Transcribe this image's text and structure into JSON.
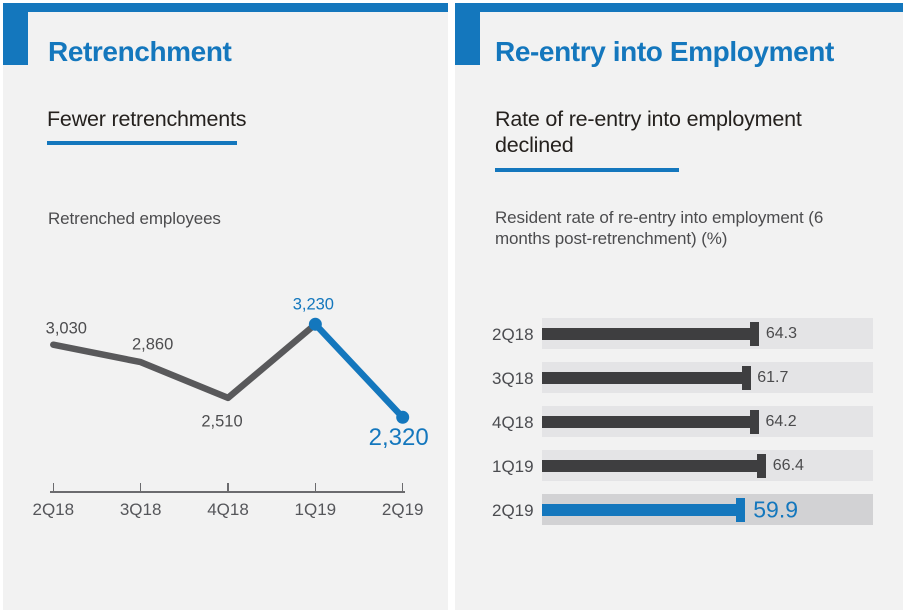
{
  "colors": {
    "accent_blue": "#1477bd",
    "panel_background": "#f2f2f2",
    "dark_text": "#25211e",
    "gray_line": "#59595b",
    "dark_bar": "#3e3e40",
    "bar_track": "#e4e4e6",
    "bar_track_highlight": "#d2d2d4"
  },
  "panels": [
    {
      "title": "Retrenchment",
      "headline": "Fewer retrenchments"
    },
    {
      "title": "Re-entry into Employment",
      "headline": "Rate of re-entry into employment declined"
    }
  ],
  "chart_data": [
    {
      "type": "line",
      "title": "Retrenched employees",
      "categories": [
        "2Q18",
        "3Q18",
        "4Q18",
        "1Q19",
        "2Q19"
      ],
      "values": [
        3030,
        2860,
        2510,
        3230,
        2320
      ],
      "value_labels": [
        "3,030",
        "2,860",
        "2,510",
        "3,230",
        "2,320"
      ],
      "highlight_from_index": 3,
      "emphasis_index": 4,
      "line_color": "#59595b",
      "highlight_color": "#1477bd",
      "xlabel": "",
      "ylabel": "",
      "legend": "none",
      "grid": false
    },
    {
      "type": "bar",
      "orientation": "horizontal",
      "title": "Resident rate of re-entry into employment (6 months post-retrenchment) (%)",
      "categories": [
        "2Q18",
        "3Q18",
        "4Q18",
        "1Q19",
        "2Q19"
      ],
      "values": [
        64.3,
        61.7,
        64.2,
        66.4,
        59.9
      ],
      "value_labels": [
        "64.3",
        "61.7",
        "64.2",
        "66.4",
        "59.9"
      ],
      "highlight_index": 4,
      "xlim": [
        0,
        100
      ],
      "bar_color": "#3e3e40",
      "highlight_color": "#1477bd",
      "legend": "none",
      "grid": false
    }
  ]
}
